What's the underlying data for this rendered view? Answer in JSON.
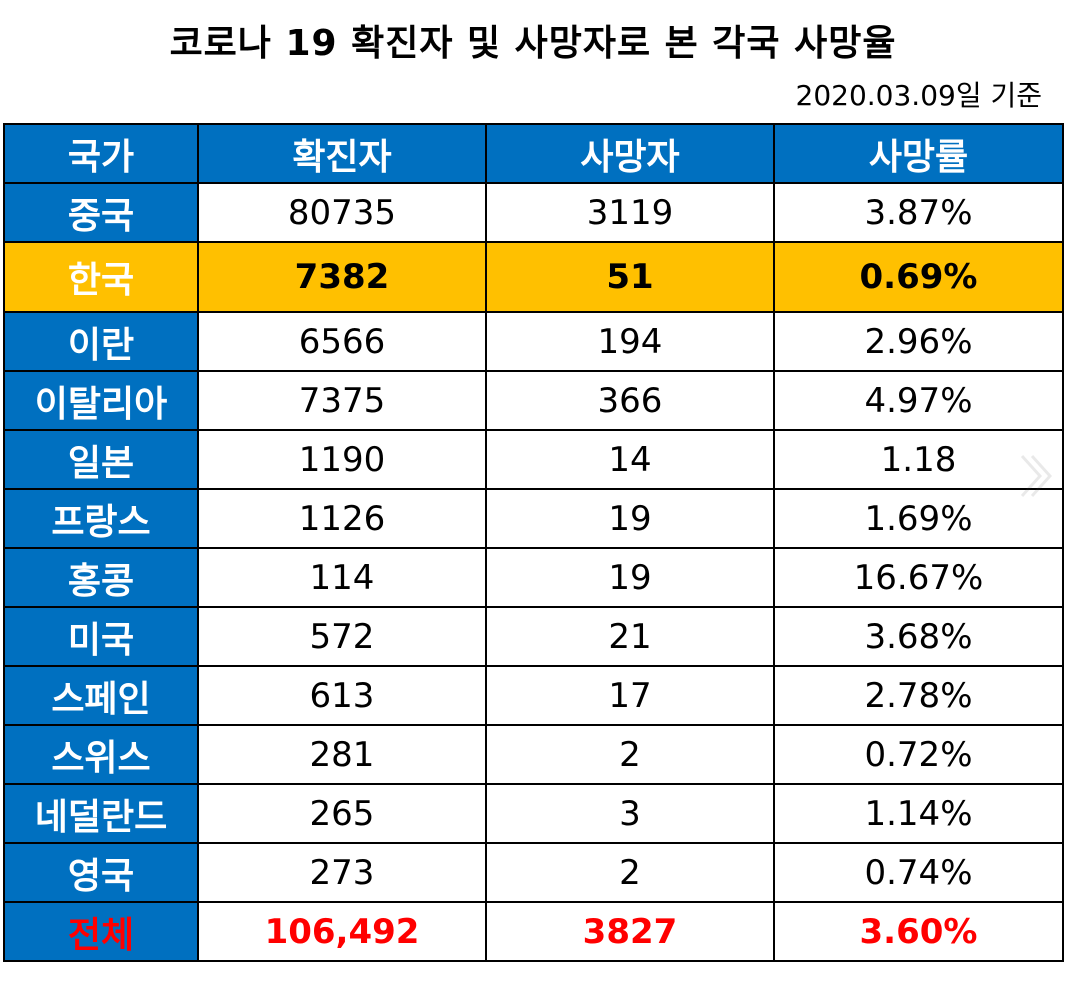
{
  "title": "코로나 19 확진자 및 사망자로 본 각국 사망율",
  "date": "2020.03.09일 기준",
  "headers": [
    "국가",
    "확진자",
    "사망자",
    "사망률"
  ],
  "rows": [
    {
      "country": "중국",
      "confirmed": "80735",
      "deaths": "3119",
      "rate": "3.87%"
    },
    {
      "country": "한국",
      "confirmed": "7382",
      "deaths": "51",
      "rate": "0.69%"
    },
    {
      "country": "이란",
      "confirmed": "6566",
      "deaths": "194",
      "rate": "2.96%"
    },
    {
      "country": "이탈리아",
      "confirmed": "7375",
      "deaths": "366",
      "rate": "4.97%"
    },
    {
      "country": "일본",
      "confirmed": "1190",
      "deaths": "14",
      "rate": "1.18"
    },
    {
      "country": "프랑스",
      "confirmed": "1126",
      "deaths": "19",
      "rate": "1.69%"
    },
    {
      "country": "홍콩",
      "confirmed": "114",
      "deaths": "19",
      "rate": "16.67%"
    },
    {
      "country": "미국",
      "confirmed": "572",
      "deaths": "21",
      "rate": "3.68%"
    },
    {
      "country": "스페인",
      "confirmed": "613",
      "deaths": "17",
      "rate": "2.78%"
    },
    {
      "country": "스위스",
      "confirmed": "281",
      "deaths": "2",
      "rate": "0.72%"
    },
    {
      "country": "네덜란드",
      "confirmed": "265",
      "deaths": "3",
      "rate": "1.14%"
    },
    {
      "country": "영국",
      "confirmed": "273",
      "deaths": "2",
      "rate": "0.74%"
    }
  ],
  "total": {
    "country": "전체",
    "confirmed": "106,492",
    "deaths": "3827",
    "rate": "3.60%"
  },
  "colors": {
    "header_blue": "#0070c0",
    "highlight_gold": "#ffc000",
    "total_red": "#ff0000"
  },
  "icons": {
    "next": "chevron-right-icon"
  }
}
